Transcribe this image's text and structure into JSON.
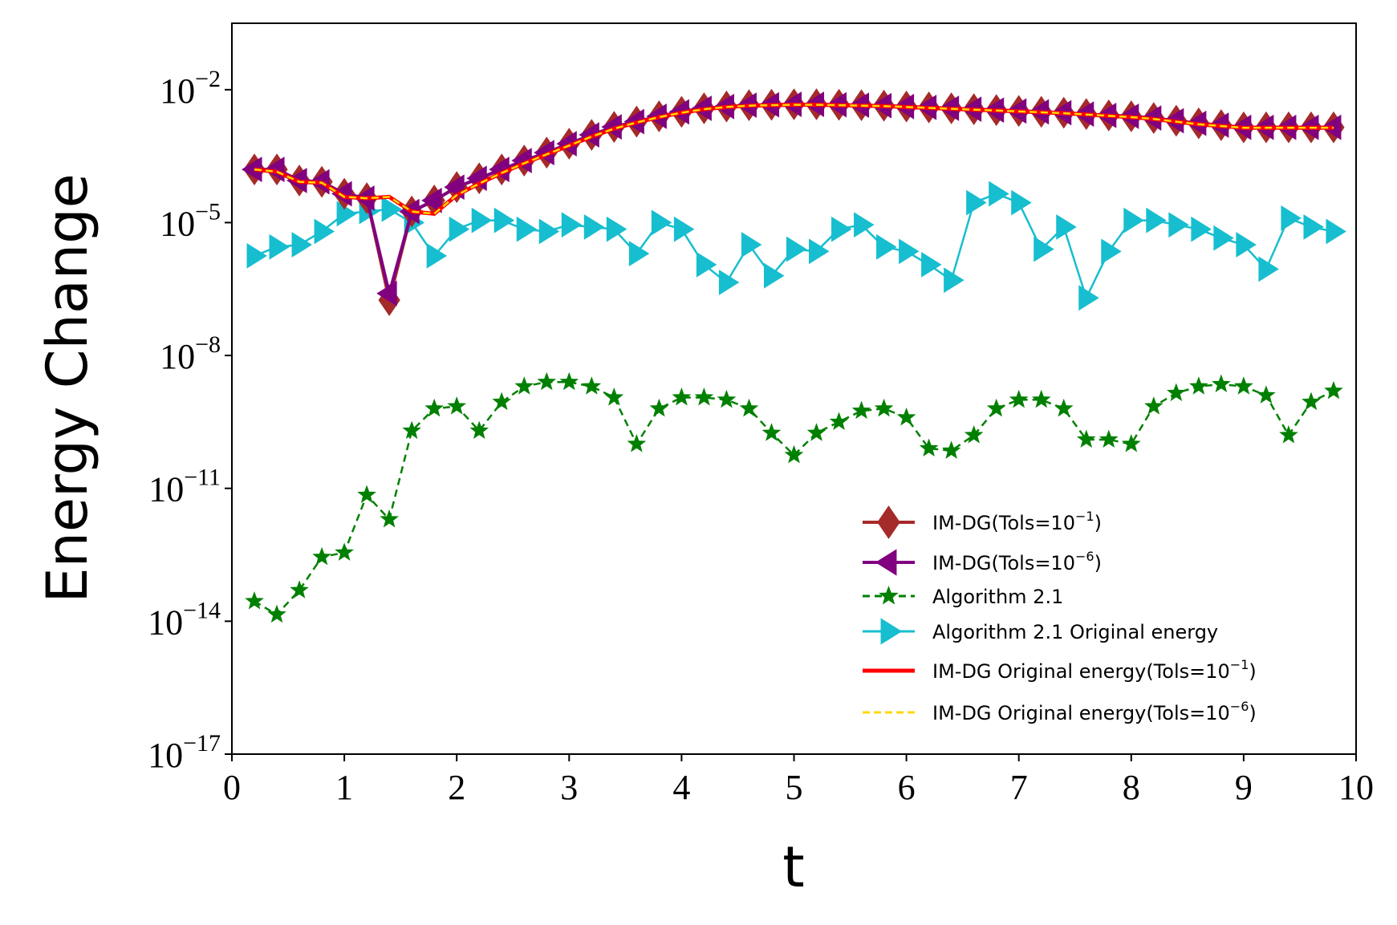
{
  "chart_data": {
    "type": "line",
    "title": "",
    "xlabel": "t",
    "ylabel": "Energy Change",
    "xlim": [
      0,
      10
    ],
    "ylim_log10": [
      -17,
      -0.5
    ],
    "yscale": "log",
    "x_ticks": [
      "0",
      "1",
      "2",
      "3",
      "4",
      "5",
      "6",
      "7",
      "8",
      "9",
      "10"
    ],
    "y_ticks": [
      {
        "base": "10",
        "exp": "−17",
        "log10": -17
      },
      {
        "base": "10",
        "exp": "−14",
        "log10": -14
      },
      {
        "base": "10",
        "exp": "−11",
        "log10": -11
      },
      {
        "base": "10",
        "exp": "−8",
        "log10": -8
      },
      {
        "base": "10",
        "exp": "−5",
        "log10": -5
      },
      {
        "base": "10",
        "exp": "−2",
        "log10": -2
      }
    ],
    "x": [
      0.2,
      0.4,
      0.6,
      0.8,
      1.0,
      1.2,
      1.4,
      1.6,
      1.8,
      2.0,
      2.2,
      2.4,
      2.6,
      2.8,
      3.0,
      3.2,
      3.4,
      3.6,
      3.8,
      4.0,
      4.2,
      4.4,
      4.6,
      4.8,
      5.0,
      5.2,
      5.4,
      5.6,
      5.8,
      6.0,
      6.2,
      6.4,
      6.6,
      6.8,
      7.0,
      7.2,
      7.4,
      7.6,
      7.8,
      8.0,
      8.2,
      8.4,
      8.6,
      8.8,
      9.0,
      9.2,
      9.4,
      9.6,
      9.8
    ],
    "series": [
      {
        "name": "IM-DG(Tols=10^-1)",
        "legend_main": "IM-DG(Tols=10",
        "legend_sup": "−1",
        "legend_tail": ")",
        "color": "#a52a2a",
        "marker": "thin_diamond",
        "line": "solid",
        "log10_values": [
          -3.8,
          -3.8,
          -4.05,
          -4.08,
          -4.35,
          -4.45,
          -6.75,
          -4.75,
          -4.5,
          -4.2,
          -4.0,
          -3.8,
          -3.6,
          -3.42,
          -3.22,
          -3.02,
          -2.84,
          -2.72,
          -2.6,
          -2.5,
          -2.42,
          -2.38,
          -2.35,
          -2.34,
          -2.33,
          -2.33,
          -2.34,
          -2.35,
          -2.36,
          -2.38,
          -2.4,
          -2.42,
          -2.44,
          -2.46,
          -2.48,
          -2.5,
          -2.52,
          -2.55,
          -2.58,
          -2.6,
          -2.64,
          -2.7,
          -2.76,
          -2.8,
          -2.85,
          -2.85,
          -2.85,
          -2.85,
          -2.85
        ]
      },
      {
        "name": "IM-DG(Tols=10^-6)",
        "legend_main": "IM-DG(Tols=10",
        "legend_sup": "−6",
        "legend_tail": ")",
        "color": "#800080",
        "marker": "triangle_left",
        "line": "solid",
        "log10_values": [
          -3.8,
          -3.8,
          -4.05,
          -4.08,
          -4.35,
          -4.45,
          -6.6,
          -4.75,
          -4.5,
          -4.2,
          -4.0,
          -3.8,
          -3.6,
          -3.42,
          -3.22,
          -3.02,
          -2.84,
          -2.72,
          -2.6,
          -2.5,
          -2.42,
          -2.38,
          -2.35,
          -2.34,
          -2.33,
          -2.33,
          -2.34,
          -2.35,
          -2.36,
          -2.38,
          -2.4,
          -2.42,
          -2.44,
          -2.46,
          -2.48,
          -2.5,
          -2.52,
          -2.55,
          -2.58,
          -2.6,
          -2.64,
          -2.7,
          -2.76,
          -2.8,
          -2.85,
          -2.85,
          -2.85,
          -2.85,
          -2.85
        ]
      },
      {
        "name": "Algorithm 2.1",
        "legend_main": "Algorithm 2.1",
        "legend_sup": "",
        "legend_tail": "",
        "color": "#008000",
        "marker": "star",
        "line": "dashed",
        "log10_values": [
          -13.55,
          -13.85,
          -13.3,
          -12.55,
          -12.45,
          -11.15,
          -11.7,
          -9.7,
          -9.2,
          -9.15,
          -9.7,
          -9.05,
          -8.7,
          -8.6,
          -8.6,
          -8.7,
          -8.95,
          -10.0,
          -9.2,
          -8.95,
          -8.95,
          -9.0,
          -9.2,
          -9.75,
          -10.25,
          -9.75,
          -9.5,
          -9.25,
          -9.2,
          -9.4,
          -10.1,
          -10.15,
          -9.8,
          -9.2,
          -9.0,
          -9.0,
          -9.2,
          -9.9,
          -9.9,
          -10.0,
          -9.15,
          -8.85,
          -8.7,
          -8.65,
          -8.7,
          -8.9,
          -9.8,
          -9.05,
          -8.8
        ]
      },
      {
        "name": "Algorithm 2.1 Original energy",
        "legend_main": "Algorithm 2.1 Original energy",
        "legend_sup": "",
        "legend_tail": "",
        "color": "#17becf",
        "marker": "triangle_right",
        "line": "solid",
        "log10_values": [
          -5.75,
          -5.55,
          -5.5,
          -5.2,
          -4.8,
          -4.75,
          -4.7,
          -5.0,
          -5.75,
          -5.15,
          -4.95,
          -4.95,
          -5.15,
          -5.2,
          -5.05,
          -5.1,
          -5.15,
          -5.7,
          -5.0,
          -5.15,
          -5.95,
          -6.35,
          -5.5,
          -6.2,
          -5.6,
          -5.65,
          -5.15,
          -5.05,
          -5.55,
          -5.65,
          -5.95,
          -6.3,
          -4.55,
          -4.35,
          -4.55,
          -5.6,
          -5.1,
          -6.7,
          -5.65,
          -4.95,
          -4.95,
          -5.05,
          -5.15,
          -5.35,
          -5.5,
          -6.05,
          -4.9,
          -5.1,
          -5.2
        ]
      },
      {
        "name": "IM-DG Original energy(Tols=10^-1)",
        "legend_main": "IM-DG Original energy(Tols=10",
        "legend_sup": "−1",
        "legend_tail": ")",
        "color": "#ff0000",
        "marker": "none",
        "line": "solid",
        "log10_values": [
          -3.8,
          -3.85,
          -4.08,
          -4.1,
          -4.42,
          -4.45,
          -4.42,
          -4.75,
          -4.8,
          -4.38,
          -4.12,
          -3.88,
          -3.66,
          -3.46,
          -3.26,
          -3.06,
          -2.88,
          -2.74,
          -2.62,
          -2.52,
          -2.44,
          -2.39,
          -2.36,
          -2.35,
          -2.34,
          -2.34,
          -2.35,
          -2.36,
          -2.37,
          -2.39,
          -2.41,
          -2.43,
          -2.45,
          -2.47,
          -2.49,
          -2.51,
          -2.53,
          -2.56,
          -2.59,
          -2.62,
          -2.66,
          -2.72,
          -2.78,
          -2.82,
          -2.86,
          -2.86,
          -2.86,
          -2.86,
          -2.86
        ]
      },
      {
        "name": "IM-DG Original energy(Tols=10^-6)",
        "legend_main": "IM-DG Original energy(Tols=10",
        "legend_sup": "−6",
        "legend_tail": ")",
        "color": "#ffd700",
        "marker": "none",
        "line": "dashed",
        "log10_values": [
          -3.8,
          -3.85,
          -4.08,
          -4.1,
          -4.42,
          -4.45,
          -4.42,
          -4.75,
          -4.8,
          -4.38,
          -4.12,
          -3.88,
          -3.66,
          -3.46,
          -3.26,
          -3.06,
          -2.88,
          -2.74,
          -2.62,
          -2.52,
          -2.44,
          -2.39,
          -2.36,
          -2.35,
          -2.34,
          -2.34,
          -2.35,
          -2.36,
          -2.37,
          -2.39,
          -2.41,
          -2.43,
          -2.45,
          -2.47,
          -2.49,
          -2.51,
          -2.53,
          -2.56,
          -2.59,
          -2.62,
          -2.66,
          -2.72,
          -2.78,
          -2.82,
          -2.86,
          -2.86,
          -2.86,
          -2.86,
          -2.86
        ]
      }
    ],
    "legend_position": "lower-right"
  }
}
